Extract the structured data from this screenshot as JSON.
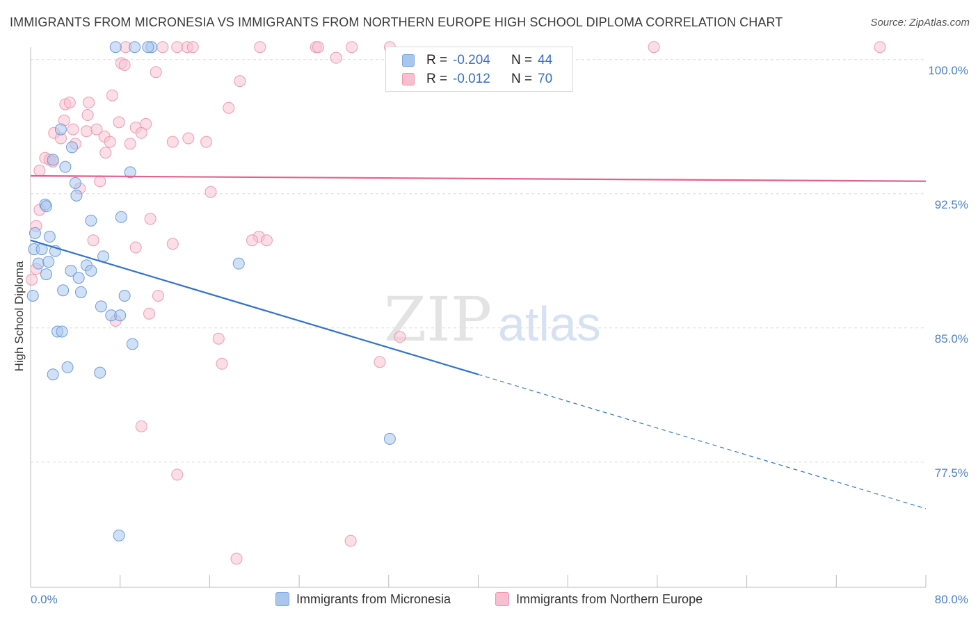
{
  "title": "IMMIGRANTS FROM MICRONESIA VS IMMIGRANTS FROM NORTHERN EUROPE HIGH SCHOOL DIPLOMA CORRELATION CHART",
  "source": "Source: ZipAtlas.com",
  "watermark": {
    "zip": "ZIP",
    "atlas": "atlas"
  },
  "legend": {
    "r_label": "R =",
    "n_label": "N =",
    "rows": [
      {
        "r": "-0.204",
        "n": "44",
        "color": "#a9c6ef",
        "border": "#7aa6de"
      },
      {
        "r": "-0.012",
        "n": "70",
        "color": "#f7bfd0",
        "border": "#ee92ae"
      }
    ]
  },
  "bottom_legend": {
    "series1": "Immigrants from Micronesia",
    "series2": "Immigrants from Northern Europe"
  },
  "colors": {
    "blue_fill": "#a9c6ef",
    "blue_stroke": "#6d9bd8",
    "blue_line": "#2f72cf",
    "pink_fill": "#f7c3d2",
    "pink_stroke": "#ee9ab4",
    "pink_line": "#e5608a",
    "tick_text": "#4a7fc8",
    "grid": "#dcdcdc"
  },
  "chart_data": {
    "type": "scatter",
    "title": "IMMIGRANTS FROM MICRONESIA VS IMMIGRANTS FROM NORTHERN EUROPE HIGH SCHOOL DIPLOMA CORRELATION CHART",
    "xlabel": "",
    "ylabel": "High School Diploma",
    "xlim": [
      0,
      80
    ],
    "ylim": [
      70.5,
      101.0
    ],
    "x_tick_labels": [
      {
        "value": 0,
        "label": "0.0%"
      },
      {
        "value": 80,
        "label": "80.0%"
      }
    ],
    "x_minor_ticks": [
      8,
      16,
      24,
      32,
      40,
      48,
      56,
      64,
      72,
      80
    ],
    "y_ticks": [
      {
        "value": 100.0,
        "label": "100.0%"
      },
      {
        "value": 92.5,
        "label": "92.5%"
      },
      {
        "value": 85.0,
        "label": "85.0%"
      },
      {
        "value": 77.5,
        "label": "77.5%"
      }
    ],
    "series": [
      {
        "name": "Immigrants from Micronesia",
        "color": "#a9c6ef",
        "points": [
          [
            7.6,
            100.7
          ],
          [
            9.3,
            100.7
          ],
          [
            10.8,
            100.7
          ],
          [
            2.7,
            96.1
          ],
          [
            3.7,
            95.1
          ],
          [
            2.0,
            94.4
          ],
          [
            3.1,
            94.0
          ],
          [
            8.9,
            93.7
          ],
          [
            4.0,
            93.1
          ],
          [
            4.1,
            92.4
          ],
          [
            1.3,
            91.9
          ],
          [
            1.4,
            91.8
          ],
          [
            5.4,
            91.0
          ],
          [
            8.1,
            91.2
          ],
          [
            0.4,
            90.3
          ],
          [
            1.7,
            90.1
          ],
          [
            0.3,
            89.4
          ],
          [
            1.0,
            89.4
          ],
          [
            2.2,
            89.3
          ],
          [
            6.5,
            89.0
          ],
          [
            0.7,
            88.6
          ],
          [
            1.6,
            88.7
          ],
          [
            5.0,
            88.5
          ],
          [
            3.6,
            88.2
          ],
          [
            5.4,
            88.2
          ],
          [
            18.6,
            88.6
          ],
          [
            1.4,
            88.0
          ],
          [
            4.3,
            87.8
          ],
          [
            2.9,
            87.1
          ],
          [
            4.5,
            87.0
          ],
          [
            0.2,
            86.8
          ],
          [
            8.4,
            86.8
          ],
          [
            6.3,
            86.2
          ],
          [
            7.2,
            85.7
          ],
          [
            8.0,
            85.7
          ],
          [
            2.4,
            84.8
          ],
          [
            2.8,
            84.8
          ],
          [
            9.1,
            84.1
          ],
          [
            3.3,
            82.8
          ],
          [
            2.0,
            82.4
          ],
          [
            6.2,
            82.5
          ],
          [
            32.1,
            78.8
          ],
          [
            7.9,
            73.4
          ],
          [
            10.5,
            100.7
          ]
        ]
      },
      {
        "name": "Immigrants from Northern Europe",
        "color": "#f7bfd0",
        "points": [
          [
            8.5,
            100.7
          ],
          [
            11.8,
            100.7
          ],
          [
            13.1,
            100.7
          ],
          [
            14.0,
            100.7
          ],
          [
            14.5,
            100.7
          ],
          [
            20.5,
            100.7
          ],
          [
            25.5,
            100.7
          ],
          [
            28.7,
            100.7
          ],
          [
            32.1,
            100.7
          ],
          [
            55.7,
            100.7
          ],
          [
            75.9,
            100.7
          ],
          [
            25.7,
            100.7
          ],
          [
            27.3,
            100.1
          ],
          [
            8.1,
            99.8
          ],
          [
            8.4,
            99.7
          ],
          [
            11.2,
            99.3
          ],
          [
            18.7,
            98.8
          ],
          [
            7.3,
            98.0
          ],
          [
            5.2,
            97.6
          ],
          [
            3.1,
            97.5
          ],
          [
            3.5,
            97.6
          ],
          [
            17.7,
            97.3
          ],
          [
            5.1,
            96.9
          ],
          [
            3.0,
            96.6
          ],
          [
            7.9,
            96.5
          ],
          [
            10.3,
            96.4
          ],
          [
            3.8,
            96.1
          ],
          [
            5.0,
            96.0
          ],
          [
            5.9,
            96.1
          ],
          [
            9.4,
            96.2
          ],
          [
            2.1,
            95.9
          ],
          [
            9.9,
            95.9
          ],
          [
            2.7,
            95.6
          ],
          [
            6.6,
            95.7
          ],
          [
            7.1,
            95.4
          ],
          [
            12.7,
            95.4
          ],
          [
            14.1,
            95.6
          ],
          [
            15.7,
            95.4
          ],
          [
            4.0,
            95.3
          ],
          [
            8.9,
            95.3
          ],
          [
            6.7,
            94.8
          ],
          [
            1.3,
            94.5
          ],
          [
            1.7,
            94.4
          ],
          [
            2.0,
            94.3
          ],
          [
            0.8,
            93.8
          ],
          [
            6.2,
            93.2
          ],
          [
            4.4,
            92.8
          ],
          [
            16.1,
            92.6
          ],
          [
            0.8,
            91.6
          ],
          [
            10.7,
            91.1
          ],
          [
            0.5,
            90.7
          ],
          [
            5.6,
            89.9
          ],
          [
            20.4,
            90.1
          ],
          [
            21.1,
            89.9
          ],
          [
            19.8,
            89.9
          ],
          [
            12.7,
            89.7
          ],
          [
            9.4,
            89.5
          ],
          [
            0.1,
            87.7
          ],
          [
            11.4,
            86.8
          ],
          [
            10.6,
            85.8
          ],
          [
            7.6,
            85.4
          ],
          [
            16.8,
            84.4
          ],
          [
            33.0,
            84.5
          ],
          [
            17.1,
            83.0
          ],
          [
            31.2,
            83.1
          ],
          [
            9.9,
            79.5
          ],
          [
            13.1,
            76.8
          ],
          [
            28.6,
            73.1
          ],
          [
            18.4,
            72.1
          ],
          [
            0.5,
            88.3
          ]
        ]
      }
    ],
    "trend_lines": [
      {
        "series": "Immigrants from Micronesia",
        "solid": [
          [
            0,
            89.9
          ],
          [
            40,
            82.4
          ]
        ],
        "dashed": [
          [
            40,
            82.4
          ],
          [
            80,
            74.9
          ]
        ]
      },
      {
        "series": "Immigrants from Northern Europe",
        "solid": [
          [
            0,
            93.5
          ],
          [
            80,
            93.2
          ]
        ]
      }
    ]
  }
}
